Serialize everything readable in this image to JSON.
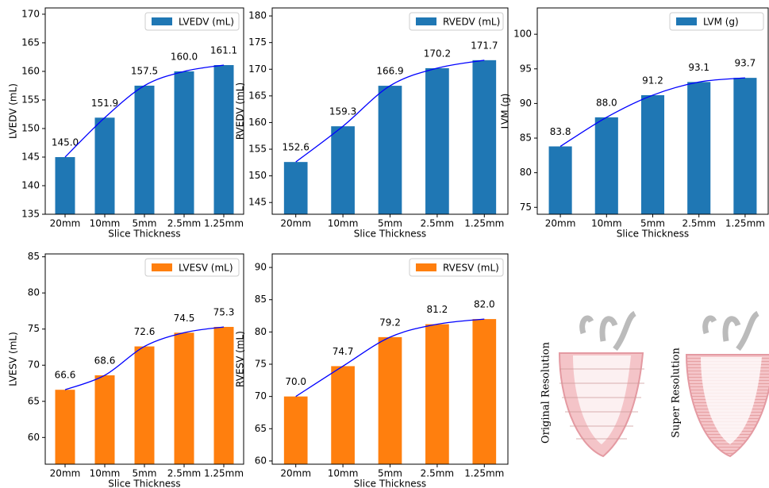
{
  "chart_data": [
    {
      "type": "bar",
      "categories": [
        "20mm",
        "10mm",
        "5mm",
        "2.5mm",
        "1.25mm"
      ],
      "xlabel": "Slice Thickness",
      "ylabel": "LVEDV (mL)",
      "series": [
        {
          "name": "LVEDV (mL)",
          "color": "#1f77b4",
          "values": [
            145.0,
            151.9,
            157.5,
            160.0,
            161.1
          ],
          "value_labels": [
            "145.0",
            "151.9",
            "157.5",
            "160.0",
            "161.1"
          ]
        }
      ],
      "ylim": [
        135,
        171.1
      ],
      "yticks": [
        135,
        140,
        145,
        150,
        155,
        160,
        165,
        170
      ],
      "trend_color": "#0000ff",
      "legend": "upper right"
    },
    {
      "type": "bar",
      "categories": [
        "20mm",
        "10mm",
        "5mm",
        "2.5mm",
        "1.25mm"
      ],
      "xlabel": "Slice Thickness",
      "ylabel": "RVEDV (mL)",
      "series": [
        {
          "name": "RVEDV (mL)",
          "color": "#1f77b4",
          "values": [
            152.6,
            159.3,
            166.9,
            170.2,
            171.7
          ],
          "value_labels": [
            "152.6",
            "159.3",
            "166.9",
            "170.2",
            "171.7"
          ]
        }
      ],
      "ylim": [
        142.8,
        181.5
      ],
      "yticks": [
        145,
        150,
        155,
        160,
        165,
        170,
        175,
        180
      ],
      "trend_color": "#0000ff",
      "legend": "upper right"
    },
    {
      "type": "bar",
      "categories": [
        "20mm",
        "10mm",
        "5mm",
        "2.5mm",
        "1.25mm"
      ],
      "xlabel": "Slice Thickness",
      "ylabel": "LVM (g)",
      "series": [
        {
          "name": "LVM (g)",
          "color": "#1f77b4",
          "values": [
            83.8,
            88.0,
            91.2,
            93.1,
            93.7
          ],
          "value_labels": [
            "83.8",
            "88.0",
            "91.2",
            "93.1",
            "93.7"
          ]
        }
      ],
      "ylim": [
        74.0,
        103.8
      ],
      "yticks": [
        75,
        80,
        85,
        90,
        95,
        100
      ],
      "trend_color": "#0000ff",
      "legend": "upper right"
    },
    {
      "type": "bar",
      "categories": [
        "20mm",
        "10mm",
        "5mm",
        "2.5mm",
        "1.25mm"
      ],
      "xlabel": "Slice Thickness",
      "ylabel": "LVESV (mL)",
      "series": [
        {
          "name": "LVESV (mL)",
          "color": "#ff7f0e",
          "values": [
            66.6,
            68.6,
            72.6,
            74.5,
            75.3
          ],
          "value_labels": [
            "66.6",
            "68.6",
            "72.6",
            "74.5",
            "75.3"
          ]
        }
      ],
      "ylim": [
        56.3,
        85.4
      ],
      "yticks": [
        60,
        65,
        70,
        75,
        80,
        85
      ],
      "trend_color": "#0000ff",
      "legend": "upper right"
    },
    {
      "type": "bar",
      "categories": [
        "20mm",
        "10mm",
        "5mm",
        "2.5mm",
        "1.25mm"
      ],
      "xlabel": "Slice Thickness",
      "ylabel": "RVESV (mL)",
      "series": [
        {
          "name": "RVESV (mL)",
          "color": "#ff7f0e",
          "values": [
            70.0,
            74.7,
            79.2,
            81.2,
            82.0
          ],
          "value_labels": [
            "70.0",
            "74.7",
            "79.2",
            "81.2",
            "82.0"
          ]
        }
      ],
      "ylim": [
        59.5,
        92.1
      ],
      "yticks": [
        60,
        65,
        70,
        75,
        80,
        85,
        90
      ],
      "trend_color": "#0000ff",
      "legend": "upper right"
    }
  ],
  "illustration": {
    "labels": [
      "Original Resolution",
      "Super Resolution"
    ]
  }
}
